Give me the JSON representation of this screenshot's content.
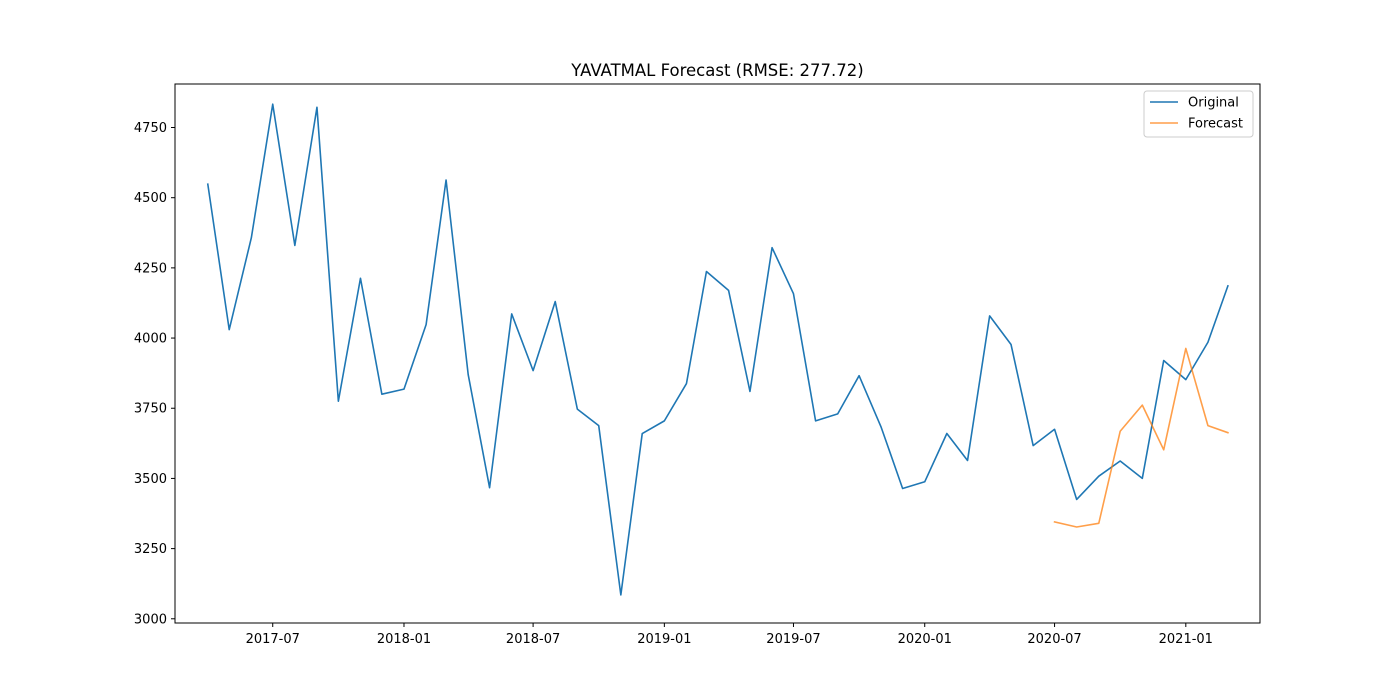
{
  "chart_data": {
    "type": "line",
    "title": "YAVATMAL Forecast (RMSE: 277.72)",
    "xlabel": "",
    "ylabel": "",
    "xlim": [
      "2017-02-14",
      "2021-04-15"
    ],
    "ylim": [
      2985,
      4905
    ],
    "x_ticks": [
      {
        "date": "2017-07-01",
        "label": "2017-07"
      },
      {
        "date": "2018-01-01",
        "label": "2018-01"
      },
      {
        "date": "2018-07-01",
        "label": "2018-07"
      },
      {
        "date": "2019-01-01",
        "label": "2019-01"
      },
      {
        "date": "2019-07-01",
        "label": "2019-07"
      },
      {
        "date": "2020-01-01",
        "label": "2020-01"
      },
      {
        "date": "2020-07-01",
        "label": "2020-07"
      },
      {
        "date": "2021-01-01",
        "label": "2021-01"
      }
    ],
    "y_ticks": [
      {
        "value": 3000,
        "label": "3000"
      },
      {
        "value": 3250,
        "label": "3250"
      },
      {
        "value": 3500,
        "label": "3500"
      },
      {
        "value": 3750,
        "label": "3750"
      },
      {
        "value": 4000,
        "label": "4000"
      },
      {
        "value": 4250,
        "label": "4250"
      },
      {
        "value": 4500,
        "label": "4500"
      },
      {
        "value": 4750,
        "label": "4750"
      }
    ],
    "grid": false,
    "legend_position": "top-right",
    "series": [
      {
        "name": "Original",
        "color": "#1f77b4",
        "x": [
          "2017-04-01",
          "2017-05-01",
          "2017-06-01",
          "2017-07-01",
          "2017-08-01",
          "2017-09-01",
          "2017-10-01",
          "2017-11-01",
          "2017-12-01",
          "2018-01-01",
          "2018-02-01",
          "2018-03-01",
          "2018-04-01",
          "2018-05-01",
          "2018-06-01",
          "2018-07-01",
          "2018-08-01",
          "2018-09-01",
          "2018-10-01",
          "2018-11-01",
          "2018-12-01",
          "2019-01-01",
          "2019-02-01",
          "2019-03-01",
          "2019-04-01",
          "2019-05-01",
          "2019-06-01",
          "2019-07-01",
          "2019-08-01",
          "2019-09-01",
          "2019-10-01",
          "2019-11-01",
          "2019-12-01",
          "2020-01-01",
          "2020-02-01",
          "2020-03-01",
          "2020-04-01",
          "2020-05-01",
          "2020-06-01",
          "2020-07-01",
          "2020-08-01",
          "2020-09-01",
          "2020-10-01",
          "2020-11-01",
          "2020-12-01",
          "2021-01-01",
          "2021-02-01",
          "2021-03-01"
        ],
        "values": [
          4548,
          4030,
          4357,
          4833,
          4330,
          4822,
          3775,
          4213,
          3800,
          3818,
          4048,
          4563,
          3870,
          3467,
          4086,
          3884,
          4130,
          3747,
          3688,
          3085,
          3660,
          3705,
          3838,
          4237,
          4170,
          3810,
          4322,
          4158,
          3705,
          3730,
          3866,
          3682,
          3464,
          3488,
          3660,
          3564,
          4079,
          3977,
          3617,
          3675,
          3425,
          3508,
          3562,
          3500,
          3920,
          3852,
          3985,
          4186
        ]
      },
      {
        "name": "Forecast",
        "color": "#ff7f0e",
        "x": [
          "2020-07-01",
          "2020-08-01",
          "2020-09-01",
          "2020-10-01",
          "2020-11-01",
          "2020-12-01",
          "2021-01-01",
          "2021-02-01",
          "2021-03-01"
        ],
        "values": [
          3345,
          3327,
          3340,
          3668,
          3761,
          3602,
          3963,
          3688,
          3663
        ]
      }
    ]
  }
}
